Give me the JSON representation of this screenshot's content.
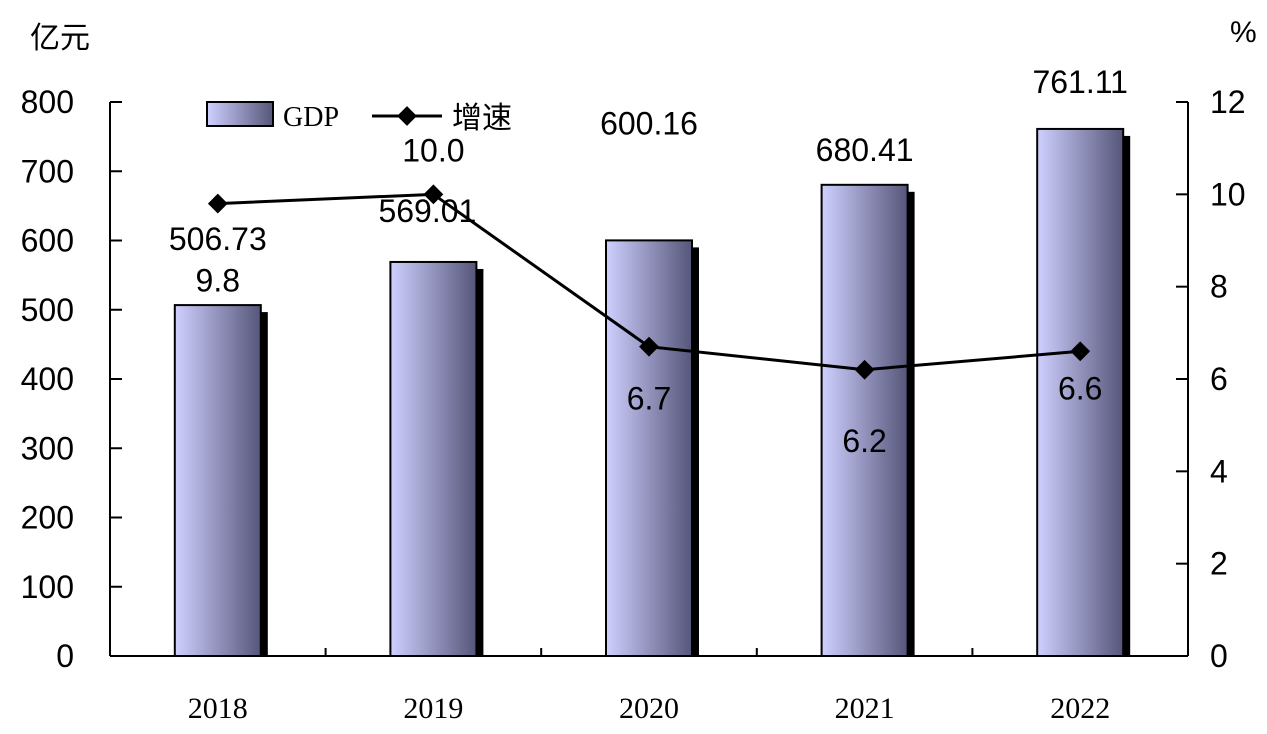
{
  "chart_data": {
    "type": "bar",
    "categories": [
      "2018",
      "2019",
      "2020",
      "2021",
      "2022"
    ],
    "series": [
      {
        "name": "GDP",
        "type": "bar",
        "axis": "left",
        "values": [
          506.73,
          569.01,
          600.16,
          680.41,
          761.11
        ],
        "labels": [
          "506.73",
          "569.01",
          "600.16",
          "680.41",
          "761.11"
        ]
      },
      {
        "name": "增速",
        "type": "line",
        "axis": "right",
        "values": [
          9.8,
          10.0,
          6.7,
          6.2,
          6.6
        ],
        "labels": [
          "9.8",
          "10.0",
          "6.7",
          "6.2",
          "6.6"
        ]
      }
    ],
    "ylabel_left": "亿元",
    "ylabel_right": "%",
    "ylim_left": [
      0,
      800
    ],
    "ylim_right": [
      0,
      12
    ],
    "yticks_left": [
      "0",
      "100",
      "200",
      "300",
      "400",
      "500",
      "600",
      "700",
      "800"
    ],
    "yticks_right": [
      "0",
      "2",
      "4",
      "6",
      "8",
      "10",
      "12"
    ],
    "grid": false,
    "legend_position": "top-left"
  },
  "colors": {
    "bar_light": "#cfd0ff",
    "bar_dark": "#56567a",
    "line": "#000000",
    "axis": "#000000"
  }
}
